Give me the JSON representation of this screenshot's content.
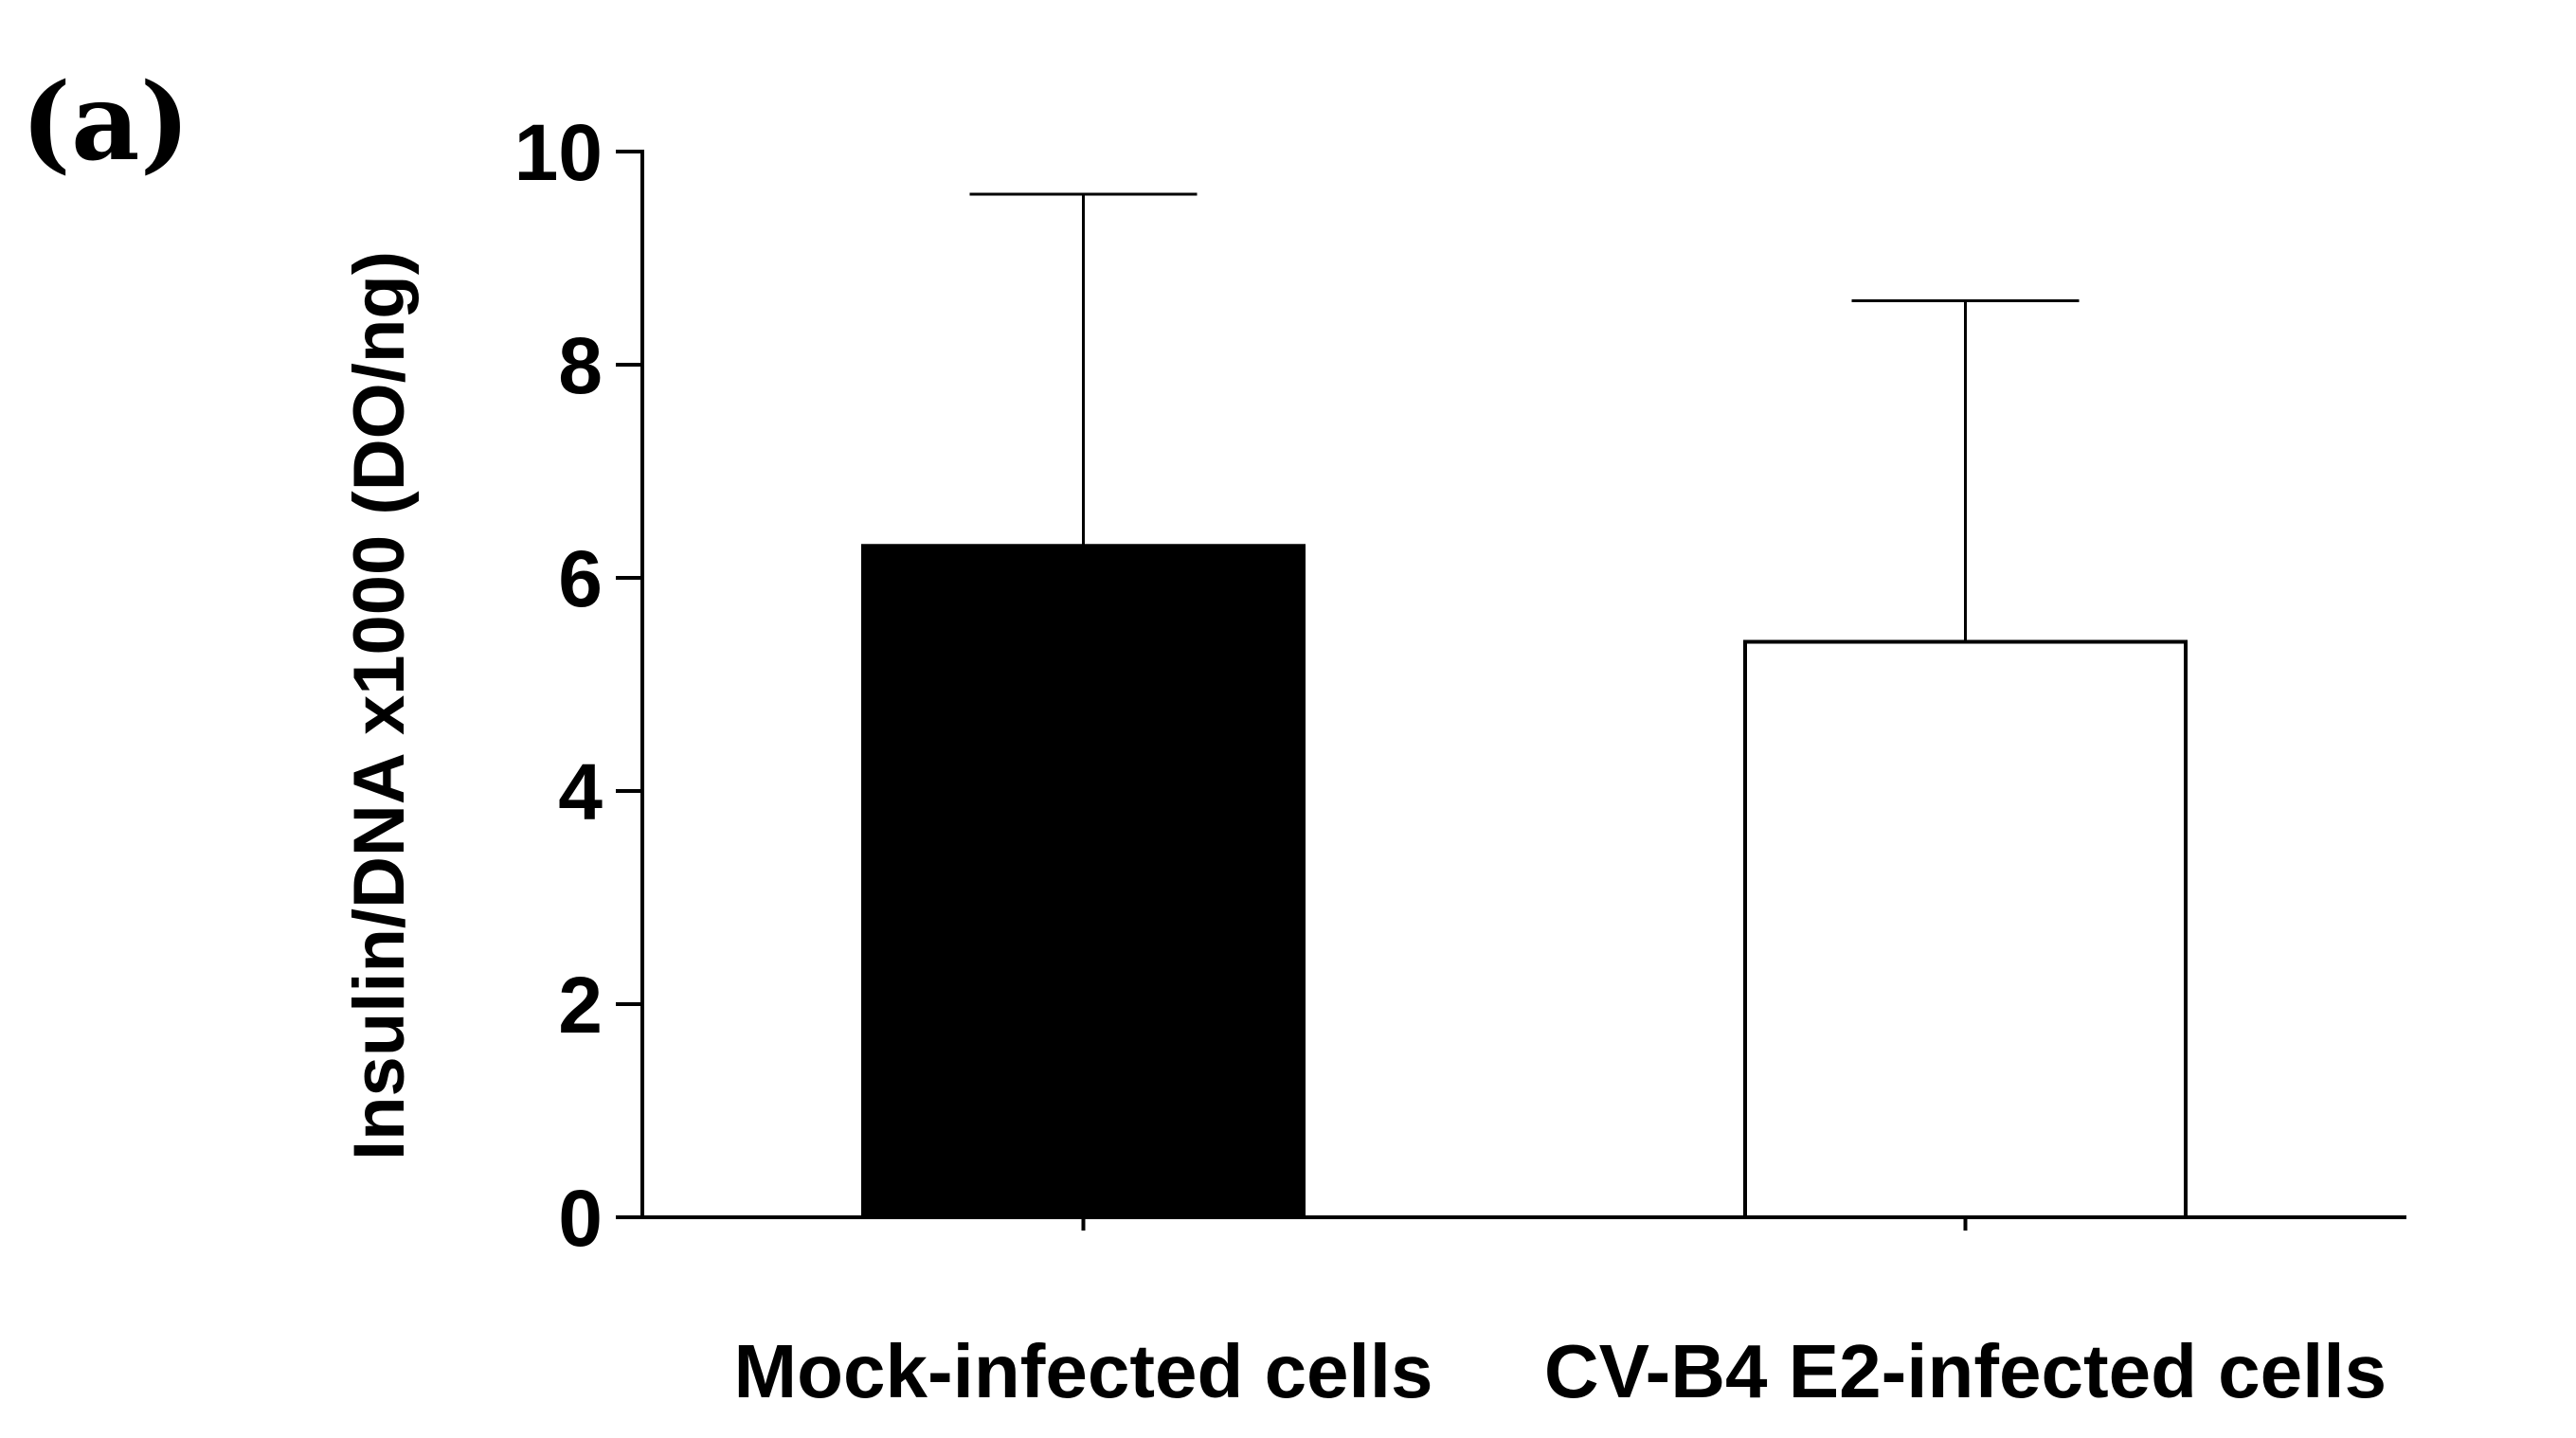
{
  "panel_label": "(a)",
  "chart_data": {
    "type": "bar",
    "title": "",
    "xlabel": "",
    "ylabel": "Insulin/DNA x1000 (DO/ng)",
    "ylim": [
      0,
      10
    ],
    "yticks": [
      0,
      2,
      4,
      6,
      8,
      10
    ],
    "ytick_labels": [
      "0",
      "2",
      "4",
      "6",
      "8",
      "10"
    ],
    "grid": false,
    "legend": "none",
    "categories": [
      "Mock-infected cells",
      "CV-B4 E2-infected cells"
    ],
    "values": [
      6.3,
      5.4
    ],
    "error_upper": [
      9.6,
      8.6
    ],
    "fill_colors": [
      "#000000",
      "#ffffff"
    ],
    "edge_color": "#000000"
  }
}
